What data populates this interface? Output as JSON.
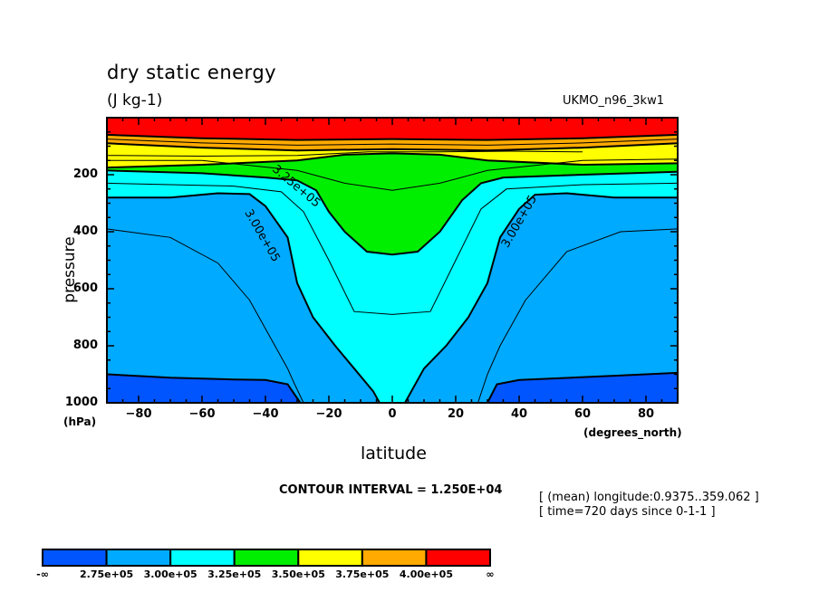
{
  "chart_data": {
    "type": "contour",
    "title": "dry static energy",
    "units": "(J kg-1)",
    "dataset": "UKMO_n96_3kw1",
    "xlabel": "latitude",
    "xunit": "(degrees_north)",
    "ylabel": "pressure",
    "yunit": "(hPa)",
    "xlim": [
      -90,
      90
    ],
    "ylim": [
      1000,
      0
    ],
    "x_ticks": [
      -80,
      -60,
      -40,
      -20,
      0,
      20,
      40,
      60,
      80
    ],
    "y_ticks": [
      200,
      400,
      600,
      800,
      1000
    ],
    "contour_interval_text": "CONTOUR INTERVAL = 1.250E+04",
    "notes": [
      "[ (mean) longitude:0.9375..359.062 ]",
      "[ time=720 days since 0-1-1 ]"
    ],
    "contour_labels": [
      {
        "text": "3.25e+05",
        "lat": -31,
        "p": 250
      },
      {
        "text": "3.00e+05",
        "lat": -42,
        "p": 420
      },
      {
        "text": "3.00e+05",
        "lat": 41,
        "p": 370
      }
    ],
    "levels": [
      {
        "range": "-∞ to 2.75e+05",
        "color": "#0055ff"
      },
      {
        "range": "2.75e+05 to 3.00e+05",
        "color": "#00aaff"
      },
      {
        "range": "3.00e+05 to 3.25e+05",
        "color": "#00ffff"
      },
      {
        "range": "3.25e+05 to 3.50e+05",
        "color": "#00ee00"
      },
      {
        "range": "3.50e+05 to 3.75e+05",
        "color": "#ffff00"
      },
      {
        "range": "3.75e+05 to 4.00e+05",
        "color": "#ffaa00"
      },
      {
        "range": "4.00e+05 to ∞",
        "color": "#ff0000"
      }
    ],
    "colorbar_labels": [
      "-∞",
      "2.75e+05",
      "3.00e+05",
      "3.25e+05",
      "3.50e+05",
      "3.75e+05",
      "4.00e+05",
      "∞"
    ],
    "boundaries": {
      "b275": [
        [
          -90,
          900
        ],
        [
          -70,
          912
        ],
        [
          -50,
          918
        ],
        [
          -40,
          920
        ],
        [
          -33,
          935
        ],
        [
          -29,
          1000
        ]
      ],
      "b300_left": [
        [
          -90,
          280
        ],
        [
          -70,
          280
        ],
        [
          -55,
          265
        ],
        [
          -45,
          268
        ],
        [
          -40,
          310
        ],
        [
          -33,
          420
        ],
        [
          -30,
          580
        ],
        [
          -25,
          700
        ],
        [
          -18,
          800
        ],
        [
          -12,
          880
        ],
        [
          -6,
          960
        ],
        [
          -4,
          1000
        ]
      ],
      "b325": [
        [
          -90,
          185
        ],
        [
          -60,
          195
        ],
        [
          -40,
          210
        ],
        [
          -30,
          220
        ],
        [
          -24,
          255
        ],
        [
          -20,
          330
        ],
        [
          -15,
          400
        ],
        [
          -8,
          470
        ],
        [
          0,
          480
        ],
        [
          8,
          470
        ],
        [
          15,
          400
        ],
        [
          22,
          290
        ],
        [
          28,
          230
        ],
        [
          35,
          210
        ],
        [
          60,
          200
        ],
        [
          90,
          190
        ]
      ],
      "b350": [
        [
          -90,
          175
        ],
        [
          -60,
          165
        ],
        [
          -30,
          150
        ],
        [
          -15,
          130
        ],
        [
          0,
          125
        ],
        [
          15,
          130
        ],
        [
          30,
          150
        ],
        [
          60,
          165
        ],
        [
          90,
          160
        ]
      ],
      "b375": [
        [
          -90,
          90
        ],
        [
          -60,
          105
        ],
        [
          -30,
          115
        ],
        [
          0,
          110
        ],
        [
          30,
          115
        ],
        [
          60,
          105
        ],
        [
          90,
          90
        ]
      ],
      "b400": [
        [
          -90,
          60
        ],
        [
          -60,
          72
        ],
        [
          -30,
          78
        ],
        [
          0,
          75
        ],
        [
          30,
          78
        ],
        [
          60,
          72
        ],
        [
          90,
          60
        ]
      ],
      "b300_right": [
        [
          90,
          280
        ],
        [
          70,
          280
        ],
        [
          55,
          265
        ],
        [
          45,
          270
        ],
        [
          40,
          320
        ],
        [
          34,
          420
        ],
        [
          30,
          580
        ],
        [
          24,
          700
        ],
        [
          17,
          800
        ],
        [
          10,
          880
        ],
        [
          6,
          960
        ],
        [
          4,
          1000
        ]
      ],
      "b275_right": [
        [
          90,
          895
        ],
        [
          70,
          905
        ],
        [
          50,
          915
        ],
        [
          40,
          920
        ],
        [
          33,
          935
        ],
        [
          30,
          1000
        ]
      ]
    }
  }
}
